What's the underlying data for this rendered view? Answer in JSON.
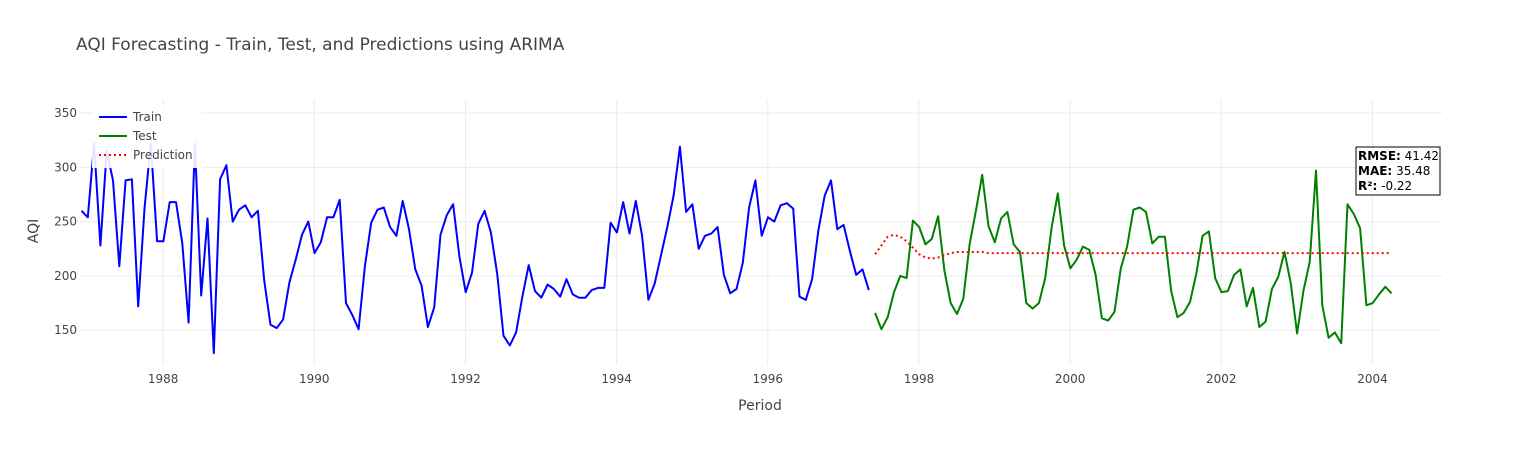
{
  "chart_data": {
    "type": "line",
    "title": "AQI Forecasting - Train, Test, and Predictions using ARIMA",
    "xlabel": "Period",
    "ylabel": "AQI",
    "xlim": [
      1986.9,
      2004.92
    ],
    "ylim": [
      118,
      362
    ],
    "x_ticks": [
      1988,
      1990,
      1992,
      1994,
      1996,
      1998,
      2000,
      2002,
      2004
    ],
    "y_ticks": [
      150,
      200,
      250,
      300,
      350
    ],
    "grid": true,
    "legend_position": "top-left",
    "series": [
      {
        "name": "Train",
        "color": "#0000ff",
        "dash": "solid",
        "x_start": 1986.92,
        "x_step": 0.08333,
        "values": [
          260,
          254,
          322,
          228,
          315,
          288,
          209,
          288,
          289,
          172,
          262,
          322,
          232,
          232,
          268,
          268,
          230,
          157,
          322,
          182,
          253,
          129,
          289,
          302,
          250,
          261,
          265,
          254,
          260,
          196,
          155,
          152,
          160,
          194,
          215,
          238,
          250,
          221,
          231,
          254,
          254,
          270,
          175,
          164,
          151,
          209,
          249,
          261,
          263,
          245,
          237,
          269,
          243,
          206,
          191,
          153,
          171,
          238,
          256,
          266,
          218,
          185,
          203,
          248,
          260,
          240,
          202,
          145,
          136,
          148,
          181,
          210,
          186,
          180,
          192,
          188,
          181,
          197,
          183,
          180,
          180,
          187,
          189,
          189,
          249,
          240,
          268,
          239,
          269,
          237,
          178,
          193,
          219,
          245,
          274,
          319,
          259,
          266,
          225,
          237,
          239,
          245,
          201,
          184,
          188,
          212,
          263,
          288,
          237,
          254,
          250,
          265,
          267,
          262,
          181,
          178,
          197,
          242,
          274,
          288,
          243,
          247,
          223,
          201,
          206,
          187
        ]
      },
      {
        "name": "Test",
        "color": "#008000",
        "dash": "solid",
        "x_start": 1997.42,
        "x_step": 0.08333,
        "values": [
          166,
          151,
          162,
          185,
          200,
          198,
          251,
          245,
          229,
          234,
          255,
          205,
          175,
          165,
          179,
          229,
          260,
          293,
          246,
          231,
          253,
          259,
          229,
          222,
          175,
          170,
          175,
          198,
          244,
          276,
          228,
          207,
          215,
          227,
          224,
          201,
          161,
          159,
          167,
          207,
          227,
          261,
          263,
          259,
          230,
          236,
          236,
          186,
          162,
          166,
          176,
          202,
          237,
          241,
          198,
          185,
          186,
          201,
          206,
          172,
          189,
          153,
          158,
          188,
          199,
          222,
          193,
          147,
          186,
          213,
          297,
          173,
          143,
          148,
          138,
          266,
          257,
          244,
          173,
          175,
          183,
          190,
          184
        ]
      },
      {
        "name": "Prediction",
        "color": "#ff0000",
        "dash": "dotted",
        "x_start": 1997.42,
        "x_step": 0.08333,
        "values": [
          220,
          228,
          236,
          238,
          236,
          232,
          226,
          220,
          217,
          216,
          217,
          219,
          221,
          222,
          222,
          222,
          222,
          222,
          221,
          221,
          221,
          221,
          221,
          221,
          221,
          221,
          221,
          221,
          221,
          221,
          221,
          221,
          221,
          221,
          221,
          221,
          221,
          221,
          221,
          221,
          221,
          221,
          221,
          221,
          221,
          221,
          221,
          221,
          221,
          221,
          221,
          221,
          221,
          221,
          221,
          221,
          221,
          221,
          221,
          221,
          221,
          221,
          221,
          221,
          221,
          221,
          221,
          221,
          221,
          221,
          221,
          221,
          221,
          221,
          221,
          221,
          221,
          221,
          221,
          221,
          221,
          221,
          221
        ]
      }
    ],
    "annotation": {
      "rmse_label": "RMSE:",
      "rmse_value": "41.42",
      "mae_label": "MAE:",
      "mae_value": "35.48",
      "r2_label": "R²:",
      "r2_value": "-0.22"
    }
  }
}
